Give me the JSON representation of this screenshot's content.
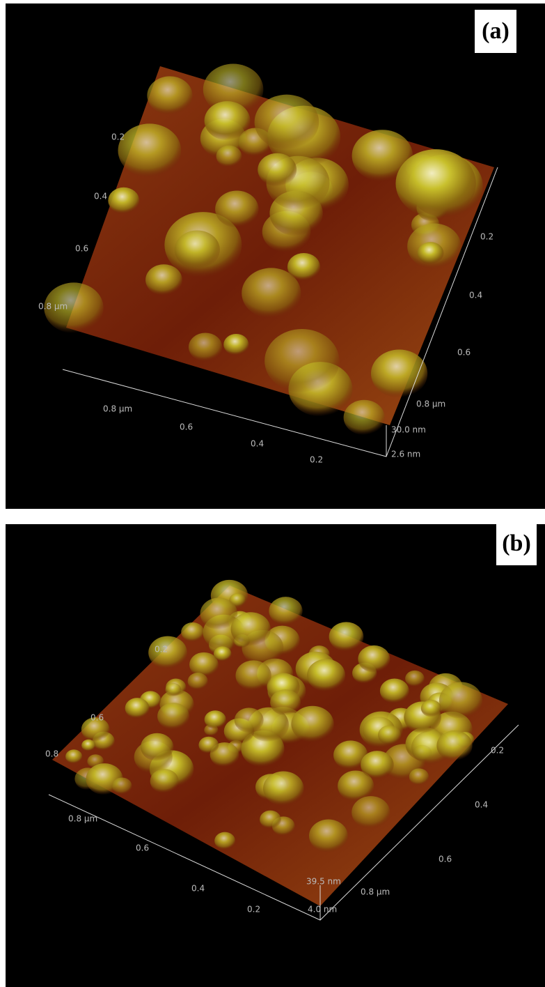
{
  "panels": [
    {
      "label": "(a)",
      "left_axis": [
        "0.2",
        "0.4",
        "0.6",
        "0.8 µm"
      ],
      "front_axis": [
        "0.8 µm",
        "0.6",
        "0.4",
        "0.2"
      ],
      "right_axis": [
        "0.2",
        "0.4",
        "0.6",
        "0.8 µm"
      ],
      "z_axis": [
        "30.0 nm",
        "2.6 nm"
      ]
    },
    {
      "label": "(b)",
      "left_axis": [
        "0.2",
        "0.6",
        "0.8"
      ],
      "front_axis": [
        "0.8 µm",
        "0.6",
        "0.4",
        "0.2"
      ],
      "right_axis": [
        "0.2",
        "0.4",
        "0.6",
        "0.8 µm"
      ],
      "z_axis": [
        "39.5 nm",
        "4.0 nm"
      ]
    }
  ]
}
